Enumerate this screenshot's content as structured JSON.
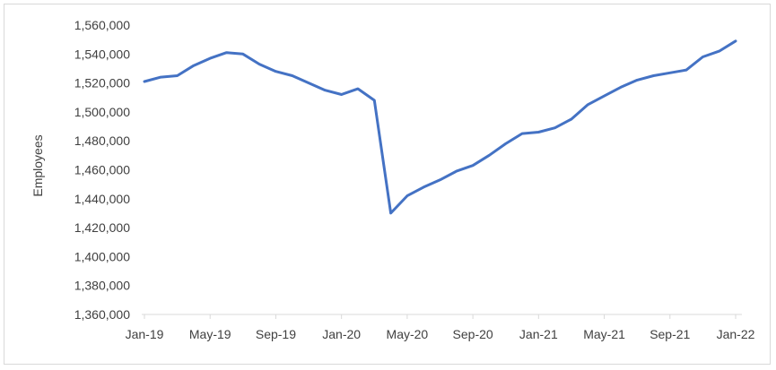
{
  "chart_data": {
    "type": "line",
    "title": "",
    "xlabel": "",
    "ylabel": "Employees",
    "ylim": [
      1360000,
      1560000
    ],
    "y_ticks": [
      1360000,
      1380000,
      1400000,
      1420000,
      1440000,
      1460000,
      1480000,
      1500000,
      1520000,
      1540000,
      1560000
    ],
    "y_tick_labels": [
      "1,360,000",
      "1,380,000",
      "1,400,000",
      "1,420,000",
      "1,440,000",
      "1,460,000",
      "1,480,000",
      "1,500,000",
      "1,520,000",
      "1,540,000",
      "1,560,000"
    ],
    "x_tick_labels": [
      "Jan-19",
      "May-19",
      "Sep-19",
      "Jan-20",
      "May-20",
      "Sep-20",
      "Jan-21",
      "May-21",
      "Sep-21",
      "Jan-22"
    ],
    "x_tick_months": [
      "2019-01",
      "2019-05",
      "2019-09",
      "2020-01",
      "2020-05",
      "2020-09",
      "2021-01",
      "2021-05",
      "2021-09",
      "2022-01"
    ],
    "grid": false,
    "legend": "none",
    "series": [
      {
        "color": "#4472c4",
        "x": [
          "2019-01",
          "2019-02",
          "2019-03",
          "2019-04",
          "2019-05",
          "2019-06",
          "2019-07",
          "2019-08",
          "2019-09",
          "2019-10",
          "2019-11",
          "2019-12",
          "2020-01",
          "2020-02",
          "2020-03",
          "2020-04",
          "2020-05",
          "2020-06",
          "2020-07",
          "2020-08",
          "2020-09",
          "2020-10",
          "2020-11",
          "2020-12",
          "2021-01",
          "2021-02",
          "2021-03",
          "2021-04",
          "2021-05",
          "2021-06",
          "2021-07",
          "2021-08",
          "2021-09",
          "2021-10",
          "2021-11",
          "2021-12",
          "2022-01"
        ],
        "values": [
          1521000,
          1524000,
          1525000,
          1532000,
          1537000,
          1541000,
          1540000,
          1533000,
          1528000,
          1525000,
          1520000,
          1515000,
          1512000,
          1516000,
          1508000,
          1430000,
          1442000,
          1448000,
          1453000,
          1459000,
          1463000,
          1470000,
          1478000,
          1485000,
          1486000,
          1489000,
          1495000,
          1505000,
          1511000,
          1517000,
          1522000,
          1525000,
          1527000,
          1529000,
          1538000,
          1542000,
          1549000
        ]
      }
    ]
  }
}
